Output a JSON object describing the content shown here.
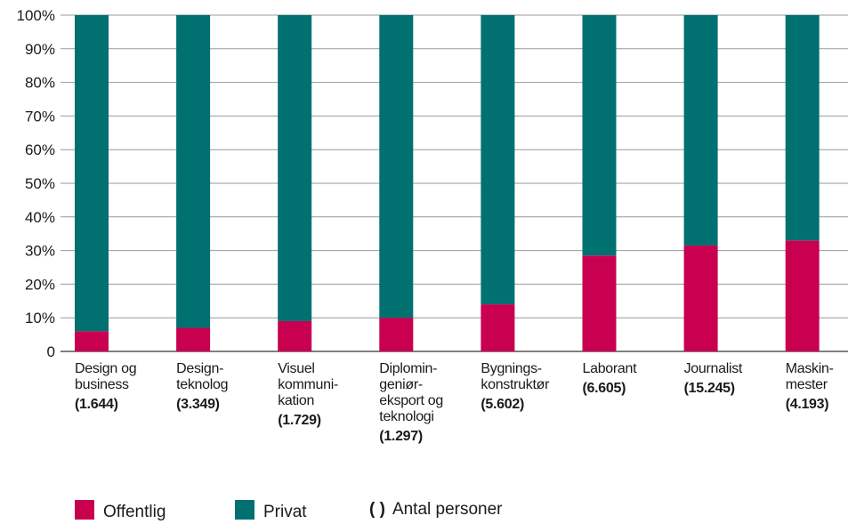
{
  "colors": {
    "offentlig": "#c8004f",
    "privat": "#007070",
    "grid": "#999999",
    "axis": "#333333"
  },
  "legend": {
    "offentlig_label": "Offentlig",
    "privat_label": "Privat",
    "paren_symbol": "( )",
    "paren_label": "Antal personer"
  },
  "chart_data": {
    "type": "bar",
    "stacked": true,
    "percent": true,
    "ylim": [
      0,
      100
    ],
    "yticks": [
      "0",
      "10%",
      "20%",
      "30%",
      "40%",
      "50%",
      "60%",
      "70%",
      "80%",
      "90%",
      "100%"
    ],
    "categories": [
      {
        "lines": [
          "Design og",
          "business"
        ],
        "count": "(1.644)"
      },
      {
        "lines": [
          "Design-",
          "teknolog"
        ],
        "count": "(3.349)"
      },
      {
        "lines": [
          "Visuel",
          "kommuni-",
          "kation"
        ],
        "count": "(1.729)"
      },
      {
        "lines": [
          "Diplomin-",
          "geniør-",
          "eksport og",
          "teknologi"
        ],
        "count": "(1.297)"
      },
      {
        "lines": [
          "Bygnings-",
          "konstruktør"
        ],
        "count": "(5.602)"
      },
      {
        "lines": [
          "Laborant"
        ],
        "count": "(6.605)"
      },
      {
        "lines": [
          "Journalist"
        ],
        "count": "(15.245)"
      },
      {
        "lines": [
          "Maskin-",
          "mester"
        ],
        "count": "(4.193)"
      }
    ],
    "series": [
      {
        "name": "Offentlig",
        "values": [
          6,
          7,
          9,
          10,
          14,
          28.5,
          31.5,
          33
        ]
      },
      {
        "name": "Privat",
        "values": [
          94,
          93,
          91,
          90,
          86,
          71.5,
          68.5,
          67
        ]
      }
    ],
    "grid": true,
    "legend_position": "bottom"
  }
}
